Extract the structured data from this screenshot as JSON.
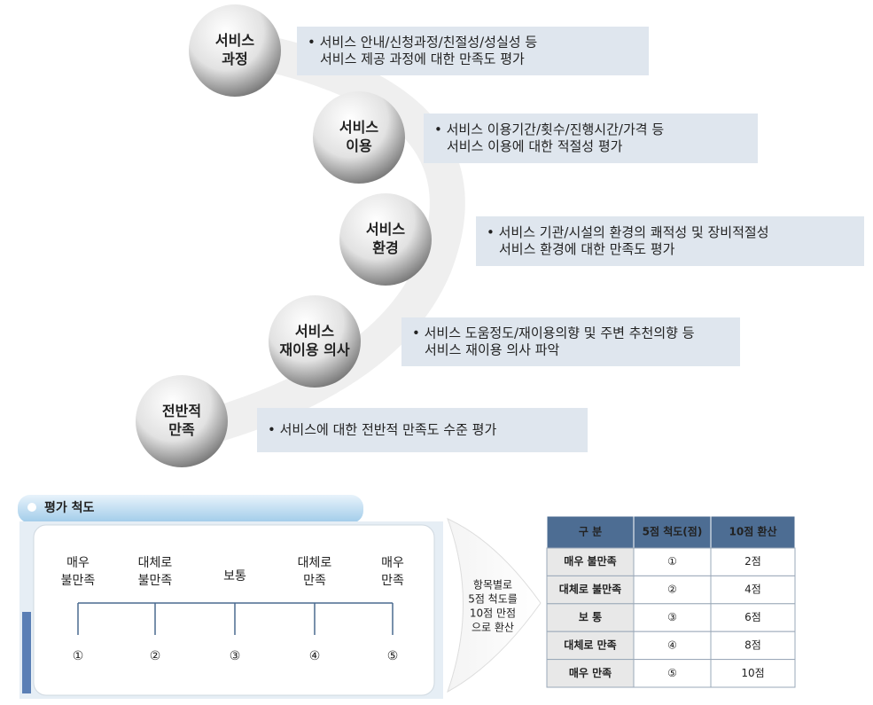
{
  "items": [
    {
      "label": [
        "서비스",
        "과정"
      ],
      "description": [
        "• 서비스 안내/신청과정/친절성/성실성 등",
        "서비스 제공 과정에 대한 만족도 평가"
      ]
    },
    {
      "label": [
        "서비스",
        "이용"
      ],
      "description": [
        "• 서비스 이용기간/횟수/진행시간/가격 등",
        "서비스 이용에 대한 적절성 평가"
      ]
    },
    {
      "label": [
        "서비스",
        "환경"
      ],
      "description": [
        "• 서비스 기관/시설의 환경의 쾌적성 및 장비적절성",
        "서비스 환경에 대한 만족도 평가"
      ]
    },
    {
      "label": [
        "서비스",
        "재이용 의사"
      ],
      "description": [
        "• 서비스 도움정도/재이용의향 및 주변 추천의향 등",
        "서비스 재이용 의사 파악"
      ]
    },
    {
      "label": [
        "전반적",
        "만족"
      ],
      "description": [
        "• 서비스에 대한 전반적 만족도 수준 평가"
      ]
    }
  ],
  "scale": {
    "title": "평가 척도",
    "points": [
      {
        "label": [
          "매우",
          "불만족"
        ],
        "number": "①"
      },
      {
        "label": [
          "대체로",
          "불만족"
        ],
        "number": "②"
      },
      {
        "label": [
          "보통"
        ],
        "number": "③"
      },
      {
        "label": [
          "대체로",
          "만족"
        ],
        "number": "④"
      },
      {
        "label": [
          "매우",
          "만족"
        ],
        "number": "⑤"
      }
    ]
  },
  "arrow_text": [
    "항목별로",
    "5점 척도를",
    "10점 만점",
    "으로 환산"
  ],
  "table": {
    "header": [
      "구 분",
      "5점 척도(점)",
      "10점 환산"
    ],
    "rows": [
      [
        "매우 불만족",
        "①",
        "2점"
      ],
      [
        "대체로 불만족",
        "②",
        "4점"
      ],
      [
        "보 통",
        "③",
        "6점"
      ],
      [
        "대체로 만족",
        "④",
        "8점"
      ],
      [
        "매우 만족",
        "⑤",
        "10점"
      ]
    ]
  }
}
